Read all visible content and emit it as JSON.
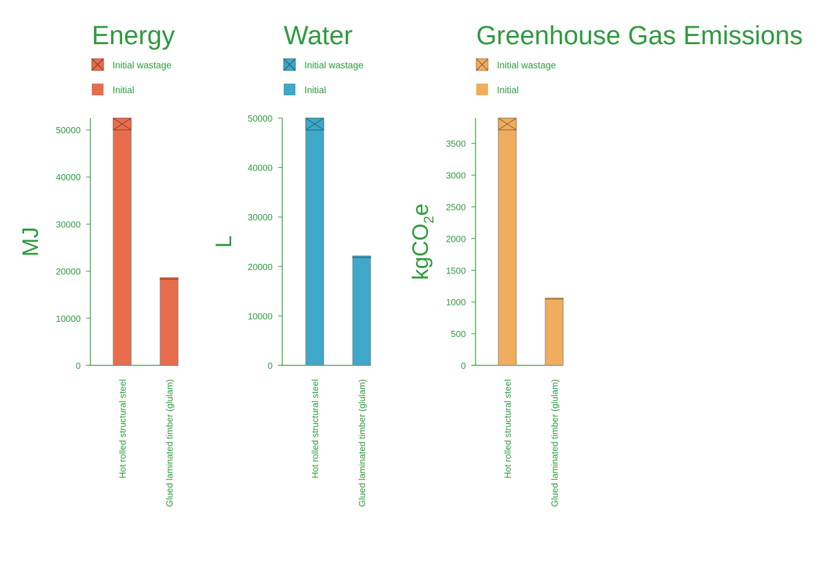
{
  "colors": {
    "text": "#2e9a3e",
    "axis": "#2e9a3e",
    "bar_edge": "#7a7a7a"
  },
  "chart_data": [
    {
      "type": "bar",
      "stacked": true,
      "title": "Energy",
      "ylabel": "MJ",
      "categories": [
        "Hot rolled structural steel",
        "Glued laminated timber (glulam)"
      ],
      "yticks": [
        0,
        10000,
        20000,
        30000,
        40000,
        50000
      ],
      "ylim": [
        0,
        52500
      ],
      "color": "#e86d4c",
      "legend": [
        "Initial wastage",
        "Initial"
      ],
      "series": [
        {
          "name": "Initial",
          "values": [
            50000,
            18300
          ]
        },
        {
          "name": "Initial wastage",
          "values": [
            2500,
            300
          ]
        }
      ]
    },
    {
      "type": "bar",
      "stacked": true,
      "title": "Water",
      "ylabel": "L",
      "categories": [
        "Hot rolled structural steel",
        "Glued laminated timber (glulam)"
      ],
      "yticks": [
        0,
        10000,
        20000,
        30000,
        40000,
        50000
      ],
      "ylim": [
        0,
        50000
      ],
      "color": "#3ea8c8",
      "legend": [
        "Initial wastage",
        "Initial"
      ],
      "series": [
        {
          "name": "Initial",
          "values": [
            47600,
            21800
          ]
        },
        {
          "name": "Initial wastage",
          "values": [
            2400,
            300
          ]
        }
      ]
    },
    {
      "type": "bar",
      "stacked": true,
      "title": "Greenhouse Gas Emissions",
      "ylabel_main": "kgCO",
      "ylabel_sub": "2",
      "ylabel_tail": "e",
      "categories": [
        "Hot rolled structural steel",
        "Glued laminated timber (glulam)"
      ],
      "yticks": [
        0,
        500,
        1000,
        1500,
        2000,
        2500,
        3000,
        3500
      ],
      "ylim": [
        0,
        3900
      ],
      "color": "#f0ad5e",
      "legend": [
        "Initial wastage",
        "Initial"
      ],
      "series": [
        {
          "name": "Initial",
          "values": [
            3715,
            1045
          ]
        },
        {
          "name": "Initial wastage",
          "values": [
            185,
            15
          ]
        }
      ]
    }
  ]
}
